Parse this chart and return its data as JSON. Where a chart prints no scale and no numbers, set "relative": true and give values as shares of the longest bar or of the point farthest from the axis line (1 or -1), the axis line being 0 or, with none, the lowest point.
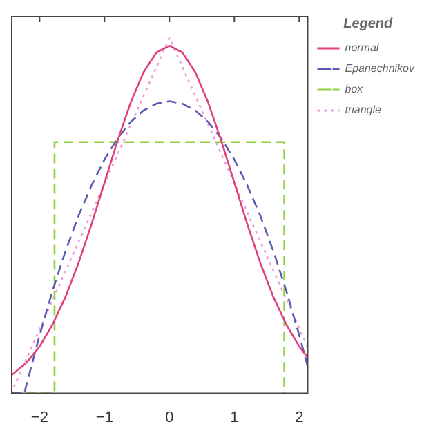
{
  "chart_data": {
    "type": "line",
    "relative": true,
    "legend_title": "Legend",
    "legend": "top right",
    "grid": false,
    "marker": "none",
    "xlim": [
      -2.44,
      2.13
    ],
    "xticks": [
      -2,
      -1,
      0,
      1,
      2
    ],
    "series": [
      {
        "name": "normal",
        "color": "#e0407a",
        "line_style": "solid",
        "x": [
          -2.44,
          -2.2,
          -2.0,
          -1.8,
          -1.6,
          -1.4,
          -1.2,
          -1.0,
          -0.8,
          -0.6,
          -0.4,
          -0.2,
          0,
          0.2,
          0.4,
          0.6,
          0.8,
          1.0,
          1.2,
          1.4,
          1.6,
          1.8,
          2.0,
          2.13
        ],
        "values": [
          0.05,
          0.087,
          0.132,
          0.194,
          0.272,
          0.367,
          0.476,
          0.593,
          0.71,
          0.817,
          0.903,
          0.959,
          0.978,
          0.959,
          0.903,
          0.817,
          0.71,
          0.593,
          0.476,
          0.367,
          0.272,
          0.194,
          0.132,
          0.101
        ]
      },
      {
        "name": "Epanechnikov",
        "color": "#5a5ab4",
        "line_style": "dashed",
        "x": [
          -2.44,
          -2.236,
          -2.2,
          -2.0,
          -1.8,
          -1.6,
          -1.4,
          -1.2,
          -1.0,
          -0.8,
          -0.6,
          -0.4,
          -0.2,
          0,
          0.2,
          0.4,
          0.6,
          0.8,
          1.0,
          1.2,
          1.4,
          1.6,
          1.8,
          2.0,
          2.13
        ],
        "values": [
          0,
          0,
          0.026,
          0.164,
          0.289,
          0.401,
          0.5,
          0.585,
          0.658,
          0.717,
          0.763,
          0.796,
          0.815,
          0.822,
          0.815,
          0.796,
          0.763,
          0.717,
          0.658,
          0.585,
          0.5,
          0.401,
          0.289,
          0.164,
          0.076
        ]
      },
      {
        "name": "box",
        "color": "#8cd23c",
        "line_style": "dashed",
        "x": [
          -2.44,
          -1.77,
          -1.77,
          1.77,
          1.77
        ],
        "values": [
          0,
          0,
          0.707,
          0.707,
          0
        ]
      },
      {
        "name": "triangle",
        "color": "#f09ce0",
        "line_style": "dotted",
        "x": [
          -2.44,
          0,
          2.13
        ],
        "values": [
          0,
          1,
          0.13
        ]
      }
    ]
  }
}
